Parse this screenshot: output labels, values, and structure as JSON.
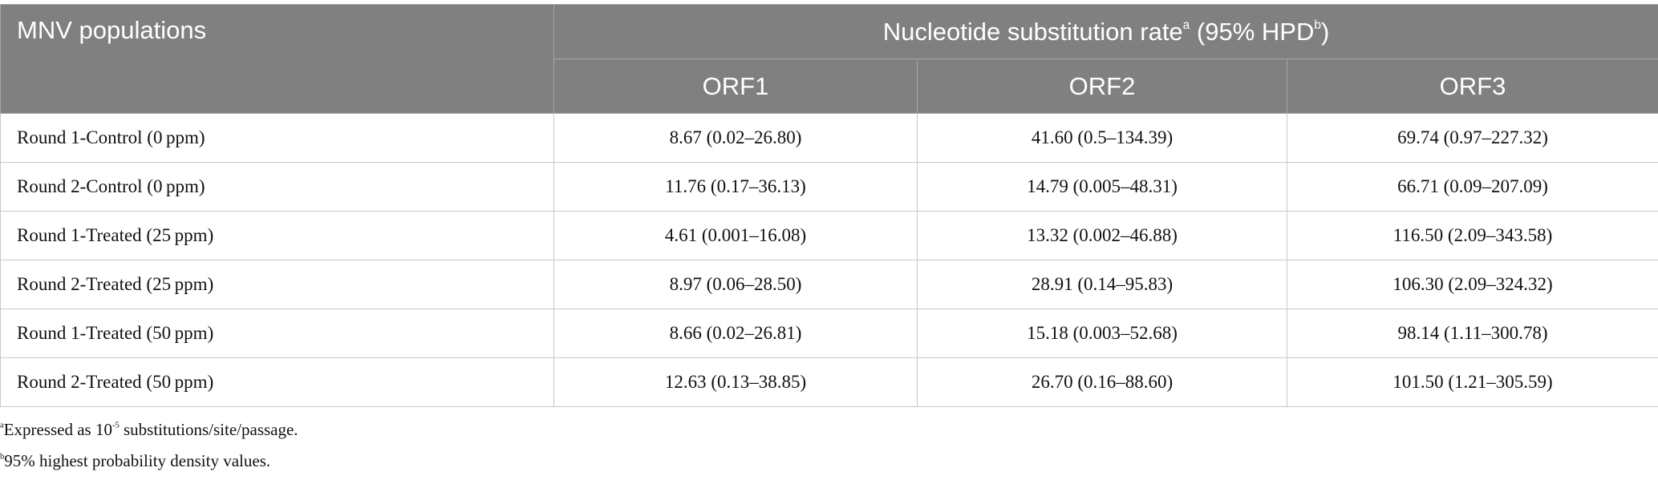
{
  "table": {
    "header": {
      "first": "MNV populations",
      "group": [
        "Nucleotide substitution rate",
        "a",
        " (95% HPD",
        "b",
        ")"
      ],
      "columns": [
        "ORF1",
        "ORF2",
        "ORF3"
      ]
    },
    "rows": [
      [
        "Round 1-Control (0 ppm)",
        "8.67 (0.02–26.80)",
        "41.60 (0.5–134.39)",
        "69.74 (0.97–227.32)"
      ],
      [
        "Round 2-Control (0 ppm)",
        "11.76 (0.17–36.13)",
        "14.79 (0.005–48.31)",
        "66.71 (0.09–207.09)"
      ],
      [
        "Round 1-Treated (25 ppm)",
        "4.61 (0.001–16.08)",
        "13.32 (0.002–46.88)",
        "116.50 (2.09–343.58)"
      ],
      [
        "Round 2-Treated (25 ppm)",
        "8.97 (0.06–28.50)",
        "28.91 (0.14–95.83)",
        "106.30 (2.09–324.32)"
      ],
      [
        "Round 1-Treated (50 ppm)",
        "8.66 (0.02–26.81)",
        "15.18 (0.003–52.68)",
        "98.14 (1.11–300.78)"
      ],
      [
        "Round 2-Treated (50 ppm)",
        "12.63 (0.13–38.85)",
        "26.70 (0.16–88.60)",
        "101.50 (1.21–305.59)"
      ]
    ]
  },
  "footnotes": [
    [
      "a",
      "Expressed as 10",
      "-5",
      " substitutions/site/passage."
    ],
    [
      "b",
      "95% highest probability density values."
    ]
  ]
}
